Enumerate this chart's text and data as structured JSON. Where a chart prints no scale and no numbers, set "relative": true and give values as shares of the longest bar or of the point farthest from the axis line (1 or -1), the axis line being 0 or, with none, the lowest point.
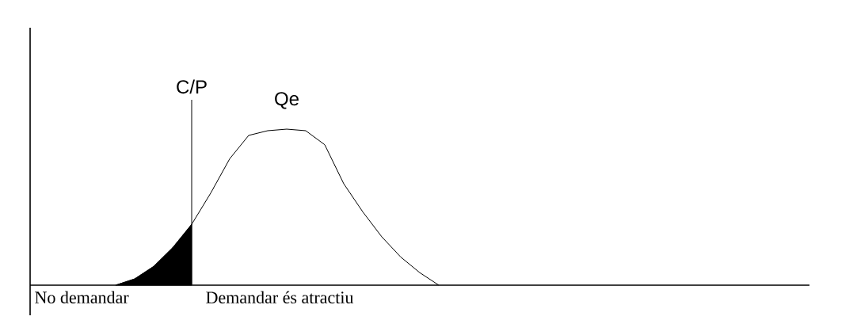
{
  "chart_data": {
    "type": "line",
    "relative": true,
    "tick_labels": false,
    "marker": "none",
    "annotations": [
      "C/P",
      "No demandar",
      "Demandar és atractiu"
    ],
    "categories": [
      null,
      null,
      null,
      null,
      null,
      null,
      null,
      null,
      null,
      null,
      null,
      null,
      null,
      null,
      null,
      null,
      null,
      null,
      null,
      null,
      null,
      null,
      null,
      null,
      null,
      null,
      null,
      null,
      null,
      null,
      null,
      null,
      null,
      null,
      null,
      null,
      null,
      null,
      null,
      null,
      null
    ],
    "series": [
      {
        "name": "Qe",
        "color": "#000000",
        "values": [
          null,
          null,
          null,
          null,
          0,
          0.04,
          0.12,
          0.24,
          0.39,
          0.59,
          0.81,
          0.96,
          0.99,
          1.0,
          0.99,
          0.9,
          0.65,
          0.47,
          0.31,
          0.18,
          0.08,
          0,
          null,
          null,
          null,
          null,
          null,
          null,
          null,
          null,
          null,
          null,
          null,
          null,
          null,
          null,
          null,
          null,
          null,
          null,
          null
        ]
      },
      {
        "type": "area",
        "color": "#000000",
        "values": [
          null,
          null,
          null,
          null,
          0,
          0.04,
          0.12,
          0.24,
          0.39,
          null,
          null,
          null,
          null,
          null,
          null,
          null,
          null,
          null,
          null,
          null,
          null,
          null,
          null,
          null,
          null,
          null,
          null,
          null,
          null,
          null,
          null,
          null,
          null,
          null,
          null,
          null,
          null,
          null,
          null,
          null,
          null
        ]
      }
    ]
  }
}
